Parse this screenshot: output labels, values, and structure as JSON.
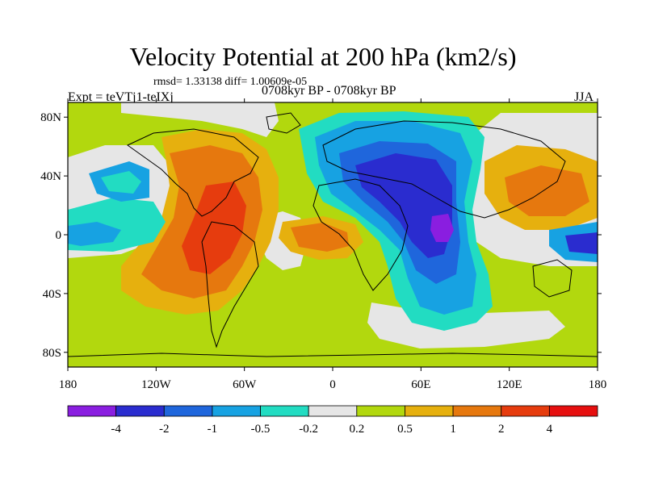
{
  "title": "Velocity Potential at 200 hPa (km2/s)",
  "stats": "rmsd= 1.33138 diff= 1.00609e-05",
  "experiment": "Expt = teVTj1-teIXj",
  "period": "0708kyr BP - 0708kyr BP",
  "season": "JJA",
  "map": {
    "lat_ticks": [
      "80N",
      "40N",
      "0",
      "40S",
      "80S"
    ],
    "lon_ticks": [
      "180",
      "120W",
      "60W",
      "0",
      "60E",
      "120E",
      "180"
    ],
    "lat_values": [
      80,
      40,
      0,
      -40,
      -80
    ],
    "lon_values": [
      -180,
      -120,
      -60,
      0,
      60,
      120,
      180
    ],
    "lat_range": [
      -90,
      90
    ],
    "lon_range": [
      -180,
      180
    ]
  },
  "colorbar": {
    "labels": [
      "-4",
      "-2",
      "-1",
      "-0.5",
      "-0.2",
      "0.2",
      "0.5",
      "1",
      "2",
      "4"
    ],
    "colors": [
      "#8a1ee0",
      "#2a2ccf",
      "#1f66dc",
      "#17a2e2",
      "#22dcc2",
      "#e6e6e6",
      "#b2d80e",
      "#e6b00e",
      "#e6780e",
      "#e63c0e",
      "#e60f0f"
    ]
  }
}
